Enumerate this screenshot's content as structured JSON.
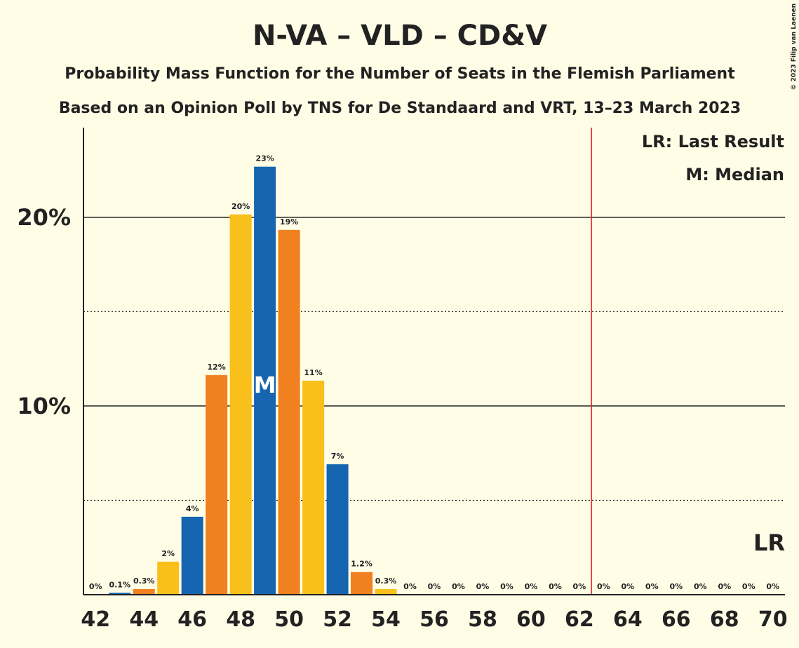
{
  "chart_data": {
    "type": "bar",
    "title": "N-VA – VLD – CD&V",
    "subtitle": "Probability Mass Function for the Number of Seats in the Flemish Parliament",
    "subtitle2": "Based on an Opinion Poll by TNS for De Standaard and VRT, 13–23 March 2023",
    "x": [
      42,
      43,
      44,
      45,
      46,
      47,
      48,
      49,
      50,
      51,
      52,
      53,
      54,
      55,
      56,
      57,
      58,
      59,
      60,
      61,
      62,
      63,
      64,
      65,
      66,
      67,
      68,
      69,
      70
    ],
    "values": [
      0,
      0.1,
      0.3,
      1.75,
      4.13,
      11.64,
      20.15,
      22.68,
      19.33,
      11.34,
      6.91,
      1.2,
      0.3,
      0,
      0,
      0,
      0,
      0,
      0,
      0,
      0,
      0,
      0,
      0,
      0,
      0,
      0,
      0,
      0
    ],
    "value_labels": [
      "0%",
      "0.1%",
      "0.3%",
      "2%",
      "4%",
      "12%",
      "20%",
      "23%",
      "19%",
      "11%",
      "7%",
      "1.2%",
      "0.3%",
      "0%",
      "0%",
      "0%",
      "0%",
      "0%",
      "0%",
      "0%",
      "0%",
      "0%",
      "0%",
      "0%",
      "0%",
      "0%",
      "0%",
      "0%",
      "0%"
    ],
    "palette": [
      "#f9bf1a",
      "#1565b0",
      "#f08020"
    ],
    "xlim": [
      41.5,
      70.5
    ],
    "xticks": [
      42,
      44,
      46,
      48,
      50,
      52,
      54,
      56,
      58,
      60,
      62,
      64,
      66,
      68,
      70
    ],
    "ylim": [
      0,
      24.75
    ],
    "yticks": [
      {
        "value": 10,
        "label": "10%"
      },
      {
        "value": 20,
        "label": "20%"
      }
    ],
    "minor_yticks": [
      5,
      15
    ],
    "grid": true,
    "last_result": 62.5,
    "last_result_color": "#e0201a",
    "last_result_label": "LR",
    "median": 49,
    "median_label": "M",
    "legend": [
      "LR: Last Result",
      "M: Median"
    ],
    "copyright": "© 2023 Filip van Laenen"
  }
}
